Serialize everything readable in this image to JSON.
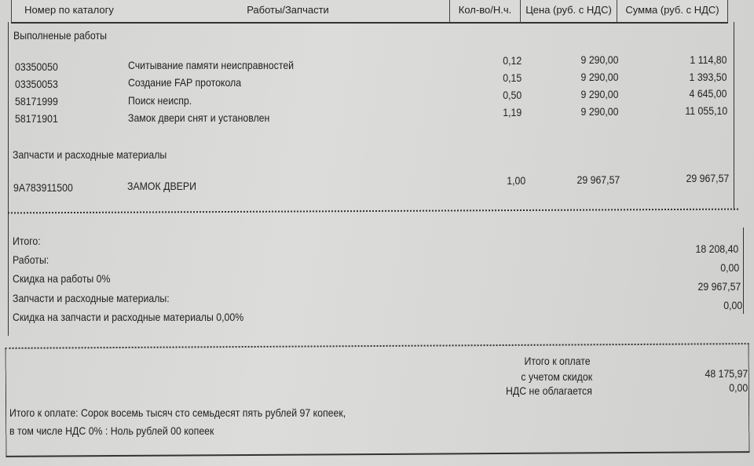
{
  "header": {
    "catalog_no": "Номер по каталогу",
    "works_parts": "Работы/Запчасти",
    "qty": "Кол-во/Н.ч.",
    "price": "Цена (руб. с НДС)",
    "sum": "Сумма (руб. с НДС)"
  },
  "works_section": {
    "title": "Выполненые работы",
    "rows": [
      {
        "code": "03350050",
        "name": "Считывание памяти неисправностей",
        "qty": "0,12",
        "price": "9 290,00",
        "sum": "1 114,80"
      },
      {
        "code": "03350053",
        "name": "Создание FAP протокола",
        "qty": "0,15",
        "price": "9 290,00",
        "sum": "1 393,50"
      },
      {
        "code": "58171999",
        "name": "Поиск неиспр.",
        "qty": "0,50",
        "price": "9 290,00",
        "sum": "4 645,00"
      },
      {
        "code": "58171901",
        "name": "Замок двери снят и установлен",
        "qty": "1,19",
        "price": "9 290,00",
        "sum": "11 055,10"
      }
    ]
  },
  "parts_section": {
    "title": "Запчасти и расходные материалы",
    "rows": [
      {
        "code": "9A783911500",
        "name": "ЗАМОК ДВЕРИ",
        "qty": "1,00",
        "price": "29 967,57",
        "sum": "29 967,57"
      }
    ]
  },
  "totals": {
    "labels": [
      "Итого:",
      "Работы:",
      "Скидка на работы 0%",
      "Запчасти и расходные материалы:",
      "Скидка на запчасти и расходные материалы 0,00%"
    ],
    "values": [
      "18 208,40",
      "0,00",
      "29 967,57",
      "0,00"
    ]
  },
  "payment": {
    "label_line1": "Итого к оплате",
    "label_line2": "с учетом скидок",
    "vat_label": "НДС не облагается",
    "total": "48 175,97",
    "vat": "0,00",
    "words_line1": "Итого к оплате: Сорок восемь тысяч сто семьдесят пять рублей 97 копеек,",
    "words_line2": "в том числе НДС 0% : Ноль рублей 00 копеек"
  }
}
